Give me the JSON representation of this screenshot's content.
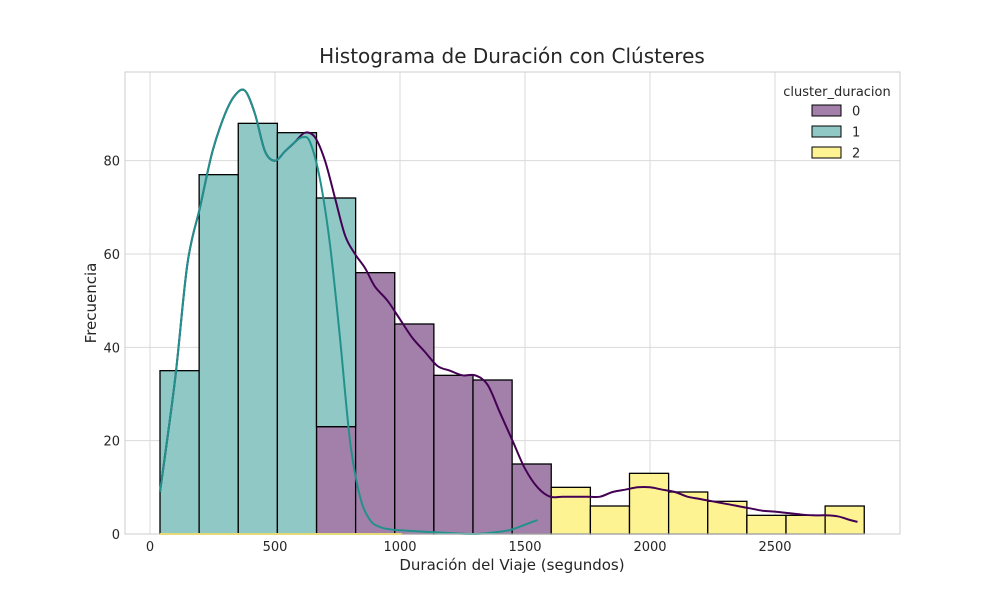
{
  "chart_data": {
    "type": "histogram",
    "title": "Histograma de Duración con Clústeres",
    "xlabel": "Duración del Viaje (segundos)",
    "ylabel": "Frecuencia",
    "xlim": [
      -100,
      3000
    ],
    "ylim": [
      0,
      99
    ],
    "xticks": [
      0,
      500,
      1000,
      1500,
      2000,
      2500
    ],
    "yticks": [
      0,
      20,
      40,
      60,
      80
    ],
    "grid": true,
    "legend_title": "cluster_duracion",
    "legend_position": "top-right",
    "bin_start": 40,
    "bin_width": 156.5,
    "series": [
      {
        "name": "0",
        "color": "#440154",
        "values": [
          0,
          0,
          0,
          0,
          23,
          56,
          45,
          34,
          33,
          15,
          0,
          0,
          0,
          0,
          0,
          0,
          0,
          0
        ]
      },
      {
        "name": "1",
        "color": "#21918c",
        "values": [
          35,
          77,
          88,
          86,
          49,
          0,
          0,
          0,
          0,
          0,
          0,
          0,
          0,
          0,
          0,
          0,
          0,
          0
        ]
      },
      {
        "name": "2",
        "color": "#fde725",
        "values": [
          0,
          0,
          0,
          0,
          0,
          0,
          0,
          0,
          0,
          0,
          10,
          6,
          13,
          9,
          7,
          4,
          4,
          6
        ]
      }
    ],
    "kde": [
      {
        "name": "0",
        "color": "#440154",
        "points": [
          [
            40,
            9
          ],
          [
            100,
            33
          ],
          [
            150,
            58
          ],
          [
            200,
            70
          ],
          [
            250,
            82
          ],
          [
            300,
            90
          ],
          [
            340,
            94
          ],
          [
            380,
            95
          ],
          [
            420,
            90
          ],
          [
            460,
            82
          ],
          [
            500,
            80
          ],
          [
            540,
            82
          ],
          [
            580,
            84
          ],
          [
            620,
            86
          ],
          [
            660,
            85
          ],
          [
            700,
            80
          ],
          [
            740,
            72
          ],
          [
            780,
            64
          ],
          [
            820,
            60
          ],
          [
            860,
            57
          ],
          [
            900,
            53
          ],
          [
            950,
            50
          ],
          [
            1000,
            46
          ],
          [
            1050,
            42
          ],
          [
            1100,
            39
          ],
          [
            1150,
            36
          ],
          [
            1200,
            35
          ],
          [
            1250,
            34
          ],
          [
            1300,
            34
          ],
          [
            1350,
            32
          ],
          [
            1400,
            26
          ],
          [
            1450,
            20
          ],
          [
            1500,
            14
          ],
          [
            1550,
            10
          ],
          [
            1600,
            8
          ],
          [
            1650,
            8
          ],
          [
            1700,
            8
          ],
          [
            1750,
            8
          ],
          [
            1800,
            8
          ],
          [
            1850,
            9
          ],
          [
            1900,
            9.5
          ],
          [
            1950,
            10
          ],
          [
            2000,
            10
          ],
          [
            2050,
            9.5
          ],
          [
            2100,
            9
          ],
          [
            2150,
            8
          ],
          [
            2200,
            7.5
          ],
          [
            2250,
            7
          ],
          [
            2300,
            6.5
          ],
          [
            2350,
            6
          ],
          [
            2400,
            5.5
          ],
          [
            2450,
            5
          ],
          [
            2500,
            4.8
          ],
          [
            2550,
            4.5
          ],
          [
            2600,
            4.2
          ],
          [
            2650,
            4
          ],
          [
            2700,
            4
          ],
          [
            2750,
            3.8
          ],
          [
            2800,
            3
          ],
          [
            2830,
            2.6
          ]
        ]
      },
      {
        "name": "1",
        "color": "#21918c",
        "points": [
          [
            40,
            9
          ],
          [
            100,
            33
          ],
          [
            150,
            58
          ],
          [
            200,
            70
          ],
          [
            250,
            82
          ],
          [
            300,
            90
          ],
          [
            340,
            94
          ],
          [
            380,
            95
          ],
          [
            420,
            90
          ],
          [
            460,
            82
          ],
          [
            500,
            80
          ],
          [
            540,
            82
          ],
          [
            580,
            84
          ],
          [
            610,
            85
          ],
          [
            640,
            84
          ],
          [
            680,
            76
          ],
          [
            720,
            62
          ],
          [
            760,
            42
          ],
          [
            800,
            20
          ],
          [
            840,
            8
          ],
          [
            880,
            3
          ],
          [
            920,
            1.5
          ],
          [
            960,
            1
          ],
          [
            1000,
            0.8
          ],
          [
            1100,
            0.5
          ],
          [
            1200,
            0.2
          ],
          [
            1300,
            0
          ],
          [
            1400,
            0.5
          ],
          [
            1450,
            1
          ],
          [
            1500,
            2
          ],
          [
            1550,
            3
          ]
        ]
      },
      {
        "name": "2",
        "color": "#fde725",
        "points": [
          [
            40,
            0
          ],
          [
            900,
            0
          ],
          [
            1000,
            0
          ]
        ]
      }
    ]
  }
}
